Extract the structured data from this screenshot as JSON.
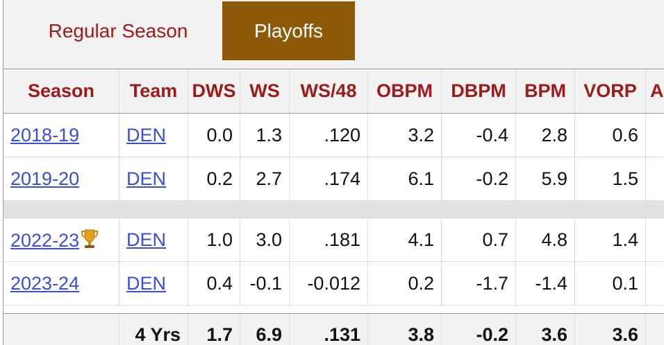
{
  "tabs": {
    "regular_label": "Regular Season",
    "playoffs_label": "Playoffs",
    "active": "Playoffs"
  },
  "table": {
    "headers": {
      "season": "Season",
      "team": "Team",
      "dws": "DWS",
      "ws": "WS",
      "ws48": "WS/48",
      "obpm": "OBPM",
      "dbpm": "DBPM",
      "bpm": "BPM",
      "vorp": "VORP",
      "a": "A"
    },
    "rows": [
      {
        "season": "2018-19",
        "team": "DEN",
        "dws": "0.0",
        "ws": "1.3",
        "ws48": ".120",
        "obpm": "3.2",
        "dbpm": "-0.4",
        "bpm": "2.8",
        "vorp": "0.6",
        "champion": false
      },
      {
        "season": "2019-20",
        "team": "DEN",
        "dws": "0.2",
        "ws": "2.7",
        "ws48": ".174",
        "obpm": "6.1",
        "dbpm": "-0.2",
        "bpm": "5.9",
        "vorp": "1.5",
        "champion": false
      },
      {
        "season": "2022-23",
        "team": "DEN",
        "dws": "1.0",
        "ws": "3.0",
        "ws48": ".181",
        "obpm": "4.1",
        "dbpm": "0.7",
        "bpm": "4.8",
        "vorp": "1.4",
        "champion": true
      },
      {
        "season": "2023-24",
        "team": "DEN",
        "dws": "0.4",
        "ws": "-0.1",
        "ws48": "-0.012",
        "obpm": "0.2",
        "dbpm": "-1.7",
        "bpm": "-1.4",
        "vorp": "0.1",
        "champion": false
      }
    ],
    "totals": {
      "label": "4 Yrs",
      "dws": "1.7",
      "ws": "6.9",
      "ws48": ".131",
      "obpm": "3.8",
      "dbpm": "-0.2",
      "bpm": "3.6",
      "vorp": "3.6"
    }
  },
  "icons": {
    "trophy": "trophy-icon"
  },
  "colors": {
    "header_text": "#9d1a1a",
    "active_tab_bg": "#8d5a07",
    "link": "#3a4ed8"
  }
}
